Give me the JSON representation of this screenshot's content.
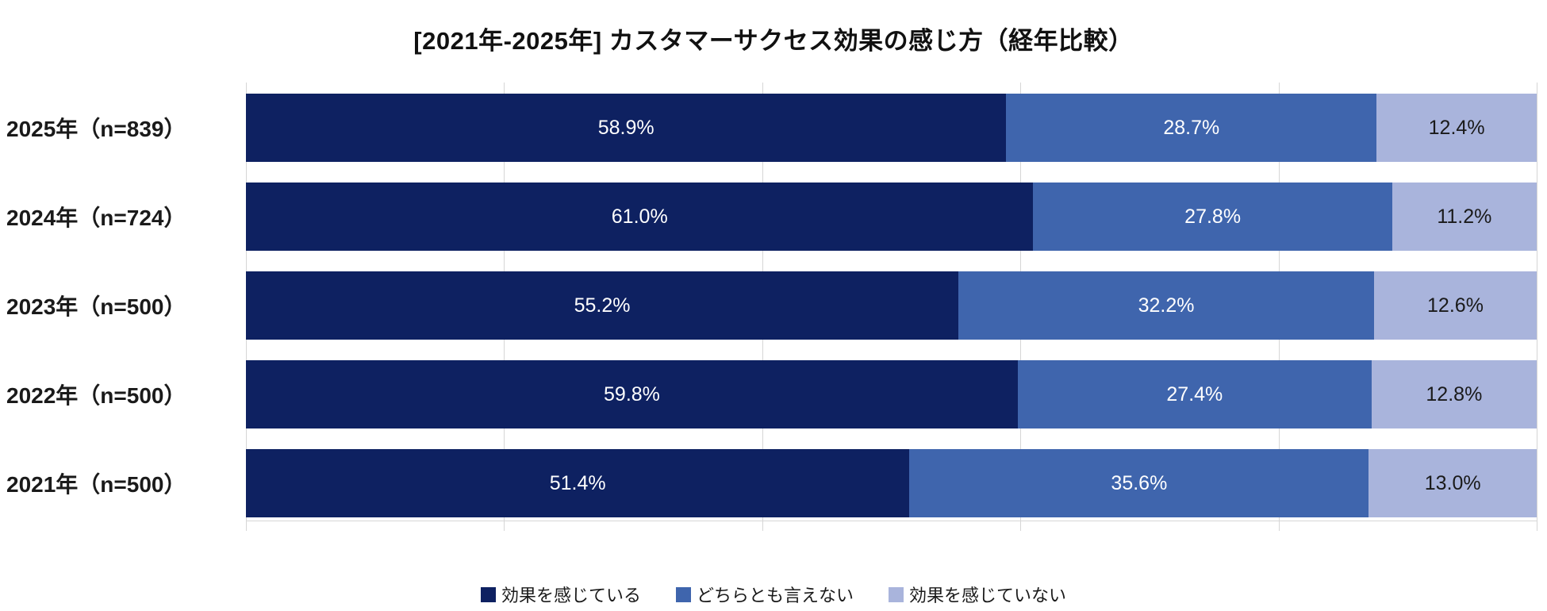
{
  "title": "[2021年-2025年] カスタマーサクセス効果の感じ方（経年比較）",
  "chart_data": {
    "type": "bar",
    "orientation": "horizontal",
    "stacked": true,
    "title": "[2021年-2025年] カスタマーサクセス効果の感じ方（経年比較）",
    "categories": [
      "2025年（n=839）",
      "2024年（n=724）",
      "2023年（n=500）",
      "2022年（n=500）",
      "2021年（n=500）"
    ],
    "series": [
      {
        "name": "効果を感じている",
        "color": "#0E2161",
        "label_color": "#ffffff",
        "values": [
          58.9,
          61.0,
          55.2,
          59.8,
          51.4
        ],
        "labels": [
          "58.9%",
          "61.0%",
          "55.2%",
          "59.8%",
          "51.4%"
        ]
      },
      {
        "name": "どちらとも言えない",
        "color": "#3F65AD",
        "label_color": "#ffffff",
        "values": [
          28.7,
          27.8,
          32.2,
          27.4,
          35.6
        ],
        "labels": [
          "28.7%",
          "27.8%",
          "32.2%",
          "27.4%",
          "35.6%"
        ]
      },
      {
        "name": "効果を感じていない",
        "color": "#A9B4DC",
        "label_color": "#1a1a1a",
        "values": [
          12.4,
          11.2,
          12.6,
          12.8,
          13.0
        ],
        "labels": [
          "12.4%",
          "11.2%",
          "12.6%",
          "12.8%",
          "13.0%"
        ]
      }
    ],
    "value_suffix": "%",
    "xlim": [
      0,
      100
    ],
    "gridline_positions_percent": [
      0,
      20,
      40,
      60,
      80,
      100
    ],
    "grid": true,
    "legend_position": "bottom",
    "gridline_color": "#d6d6d6"
  }
}
